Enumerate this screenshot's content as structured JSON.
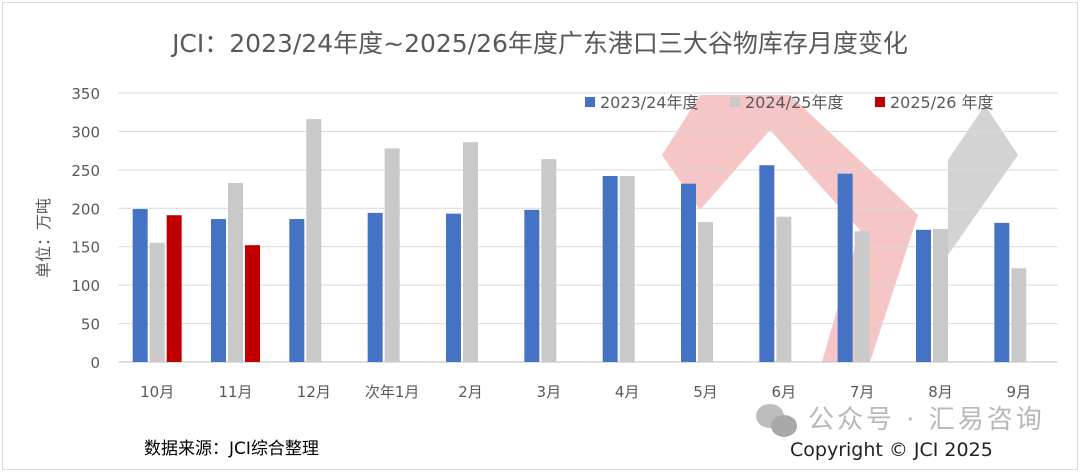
{
  "chart_data": {
    "type": "bar",
    "title": "JCI：2023/24年度~2025/26年度广东港口三大谷物库存月度变化",
    "ylabel": "单位：万吨",
    "xlabel": "",
    "ylim": [
      0,
      350
    ],
    "yticks": [
      0,
      50,
      100,
      150,
      200,
      250,
      300,
      350
    ],
    "grid": true,
    "legend_position": "top-right",
    "categories": [
      "10月",
      "11月",
      "12月",
      "次年1月",
      "2月",
      "3月",
      "4月",
      "5月",
      "6月",
      "7月",
      "8月",
      "9月"
    ],
    "series": [
      {
        "name": "2023/24年度",
        "color": "#4472c4",
        "values": [
          199,
          186,
          186,
          194,
          193,
          198,
          242,
          232,
          256,
          245,
          172,
          181
        ]
      },
      {
        "name": "2024/25年度",
        "color": "#c9c9c9",
        "values": [
          155,
          233,
          316,
          278,
          286,
          264,
          242,
          182,
          189,
          170,
          173,
          122
        ]
      },
      {
        "name": "2025/26 年度",
        "color": "#c00000",
        "values": [
          191,
          152,
          null,
          null,
          null,
          null,
          null,
          null,
          null,
          null,
          null,
          null
        ]
      }
    ]
  },
  "footer": {
    "source": "数据来源：JCI综合整理",
    "copyright": "Copyright © JCI 2025",
    "watermark": "公众号 · 汇易咨询"
  }
}
